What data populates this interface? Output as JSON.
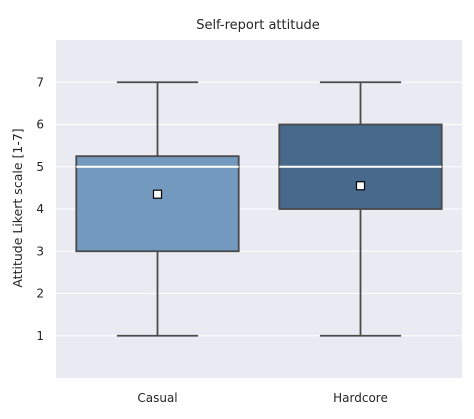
{
  "chart_data": {
    "type": "box",
    "title": "Self-report attitude",
    "xlabel": "",
    "ylabel": "Attitude Likert scale [1-7]",
    "ylim": [
      0,
      8
    ],
    "yticks": [
      1,
      2,
      3,
      4,
      5,
      6,
      7
    ],
    "grid": true,
    "categories": [
      "Casual",
      "Hardcore"
    ],
    "boxes": [
      {
        "category": "Casual",
        "min": 1,
        "q1": 3,
        "median": 5,
        "q3": 5.25,
        "max": 7,
        "mean": 4.35,
        "color": "#7399BE"
      },
      {
        "category": "Hardcore",
        "min": 1,
        "q1": 4,
        "median": 5,
        "q3": 6,
        "max": 7,
        "mean": 4.55,
        "color": "#47698C"
      }
    ],
    "colors": {
      "plot_background": "#EAEAF2",
      "grid": "#FFFFFF",
      "box_outline": "#4A4A4A",
      "median_line": "#FFFFFF",
      "mean_marker_fill": "#FFFFFF",
      "mean_marker_edge": "#000000"
    }
  }
}
